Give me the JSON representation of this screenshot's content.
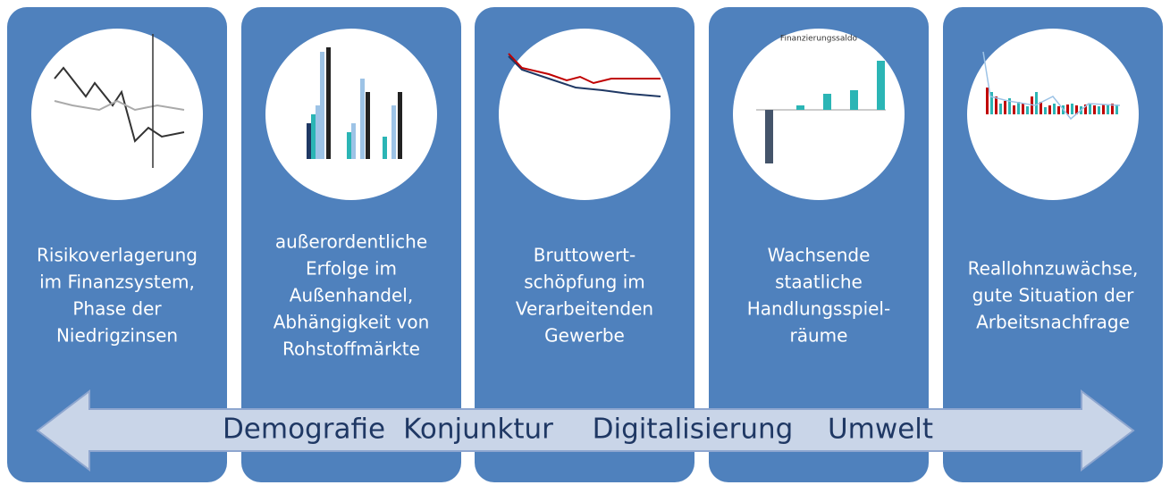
{
  "panels": [
    {
      "lines": [
        "Risikoverlagerung",
        "im Finanzsystem,",
        "Phase der",
        "Niedrigzinsen"
      ]
    },
    {
      "lines": [
        "außerordentliche",
        "Erfolge im",
        "Außenhandel,",
        "Abhängigkeit von",
        "Rohstoffmärkte"
      ]
    },
    {
      "lines": [
        "Bruttowert-",
        "schöpfung im",
        "Verarbeitenden",
        "Gewerbe"
      ]
    },
    {
      "lines": [
        "Wachsende",
        "staatliche",
        "Handlungsspiel-",
        "räume"
      ],
      "thumb_title": "Finanzierungssaldo"
    },
    {
      "lines": [
        "Reallohnzuwächse,",
        "gute Situation der",
        "Arbeitsnachfrage"
      ]
    }
  ],
  "arrow": {
    "words": [
      "Demografie",
      "Konjunktur",
      "Digitalisierung",
      "Umwelt"
    ]
  }
}
